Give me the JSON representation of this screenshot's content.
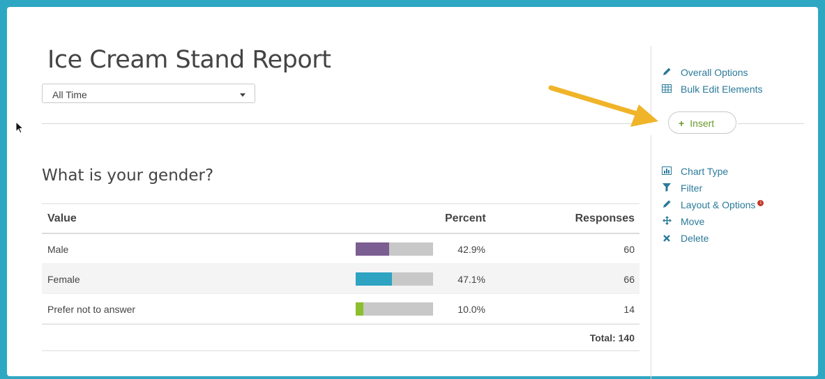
{
  "report": {
    "title": "Ice Cream Stand Report",
    "date_range": "All Time"
  },
  "question": {
    "title": "What is your gender?",
    "columns": {
      "value": "Value",
      "percent": "Percent",
      "responses": "Responses"
    },
    "rows": [
      {
        "label": "Male",
        "percent": "42.9%",
        "responses": "60",
        "fraction": 0.429,
        "color": "#7b5e92"
      },
      {
        "label": "Female",
        "percent": "47.1%",
        "responses": "66",
        "fraction": 0.471,
        "color": "#2ea3c2"
      },
      {
        "label": "Prefer not to answer",
        "percent": "10.0%",
        "responses": "14",
        "fraction": 0.1,
        "color": "#8cbf2f"
      }
    ],
    "total": "Total: 140"
  },
  "sidebar": {
    "top_links": [
      {
        "label": "Overall Options",
        "icon": "pencil-icon"
      },
      {
        "label": "Bulk Edit Elements",
        "icon": "table-icon"
      }
    ],
    "insert_label": "Insert",
    "element_links": [
      {
        "label": "Chart Type",
        "icon": "bar-chart-icon"
      },
      {
        "label": "Filter",
        "icon": "filter-icon"
      },
      {
        "label": "Layout & Options",
        "icon": "pencil-icon"
      },
      {
        "label": "Move",
        "icon": "move-icon"
      },
      {
        "label": "Delete",
        "icon": "close-icon"
      }
    ]
  },
  "colors": {
    "background": "#2ea8c2",
    "link": "#2a7a9a",
    "insert_text": "#6a9a2c",
    "arrow": "#f0b429"
  }
}
